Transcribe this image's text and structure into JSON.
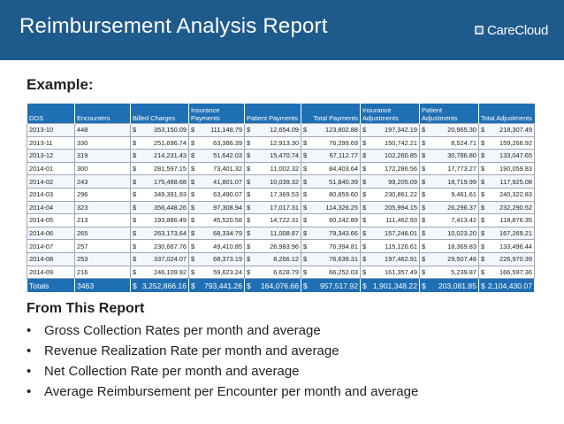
{
  "header": {
    "title": "Reimbursement Analysis Report",
    "logo_text": "CareCloud",
    "background": "#1f5a8c"
  },
  "example_label": "Example:",
  "table": {
    "accent": "#1f6fb4",
    "columns": [
      "DOS",
      "Encounters",
      "Billed Charges",
      "Insurance Payments",
      "Patient Payments",
      "Total Payments",
      "Insurance Adjustments",
      "Patient Adjustments",
      "Total Adjustments"
    ],
    "rows": [
      [
        "2013-10",
        "448",
        "353,150.09",
        "111,148.79",
        "12,654.09",
        "123,802.88",
        "197,342.19",
        "20,965.30",
        "218,307.49"
      ],
      [
        "2013-11",
        "330",
        "251,696.74",
        "63,386.39",
        "12,913.30",
        "76,299.69",
        "150,742.21",
        "8,524.71",
        "159,266.92"
      ],
      [
        "2013-12",
        "319",
        "214,231.43",
        "51,642.03",
        "15,470.74",
        "67,112.77",
        "102,260.85",
        "30,786.80",
        "133,047.65"
      ],
      [
        "2014-01",
        "300",
        "281,597.15",
        "73,401.32",
        "11,002.32",
        "84,403.64",
        "172,286.56",
        "17,773.27",
        "190,059.83"
      ],
      [
        "2014-02",
        "243",
        "175,488.68",
        "41,801.07",
        "10,039.32",
        "51,840.39",
        "99,205.09",
        "18,719.99",
        "117,925.08"
      ],
      [
        "2014-03",
        "296",
        "349,391.93",
        "63,490.07",
        "17,369.53",
        "80,859.60",
        "230,861.22",
        "9,461.61",
        "240,322.83"
      ],
      [
        "2014-04",
        "323",
        "356,448.26",
        "97,308.94",
        "17,017.31",
        "114,326.25",
        "205,994.15",
        "26,296.37",
        "232,290.52"
      ],
      [
        "2014-05",
        "213",
        "193,886.49",
        "45,520.58",
        "14,722.31",
        "60,242.89",
        "111,462.93",
        "7,413.42",
        "118,876.35"
      ],
      [
        "2014-06",
        "265",
        "263,173.64",
        "68,334.79",
        "11,008.87",
        "79,343.66",
        "157,246.01",
        "10,023.20",
        "167,269.21"
      ],
      [
        "2014-07",
        "257",
        "230,667.76",
        "49,410.85",
        "26,983.96",
        "76,394.81",
        "115,126.61",
        "18,369.83",
        "133,496.44"
      ],
      [
        "2014-08",
        "253",
        "337,024.07",
        "68,373.19",
        "8,266.12",
        "76,639.31",
        "197,462.91",
        "29,507.48",
        "226,970.39"
      ],
      [
        "2014-09",
        "216",
        "246,109.92",
        "59,623.24",
        "6,628.79",
        "66,252.03",
        "161,357.49",
        "5,239.87",
        "166,597.36"
      ]
    ],
    "currency_symbol": "$",
    "totals": [
      "Totals",
      "3463",
      "3,252,866.16",
      "793,441.26",
      "164,076.66",
      "957,517.92",
      "1,901,348.22",
      "203,081.85",
      "2,104,430.07"
    ]
  },
  "section": {
    "heading": "From This Report",
    "items": [
      "Gross Collection Rates per month and average",
      "Revenue Realization Rate per month and average",
      "Net Collection Rate per month and average",
      "Average Reimbursement per Encounter per month and average"
    ]
  }
}
